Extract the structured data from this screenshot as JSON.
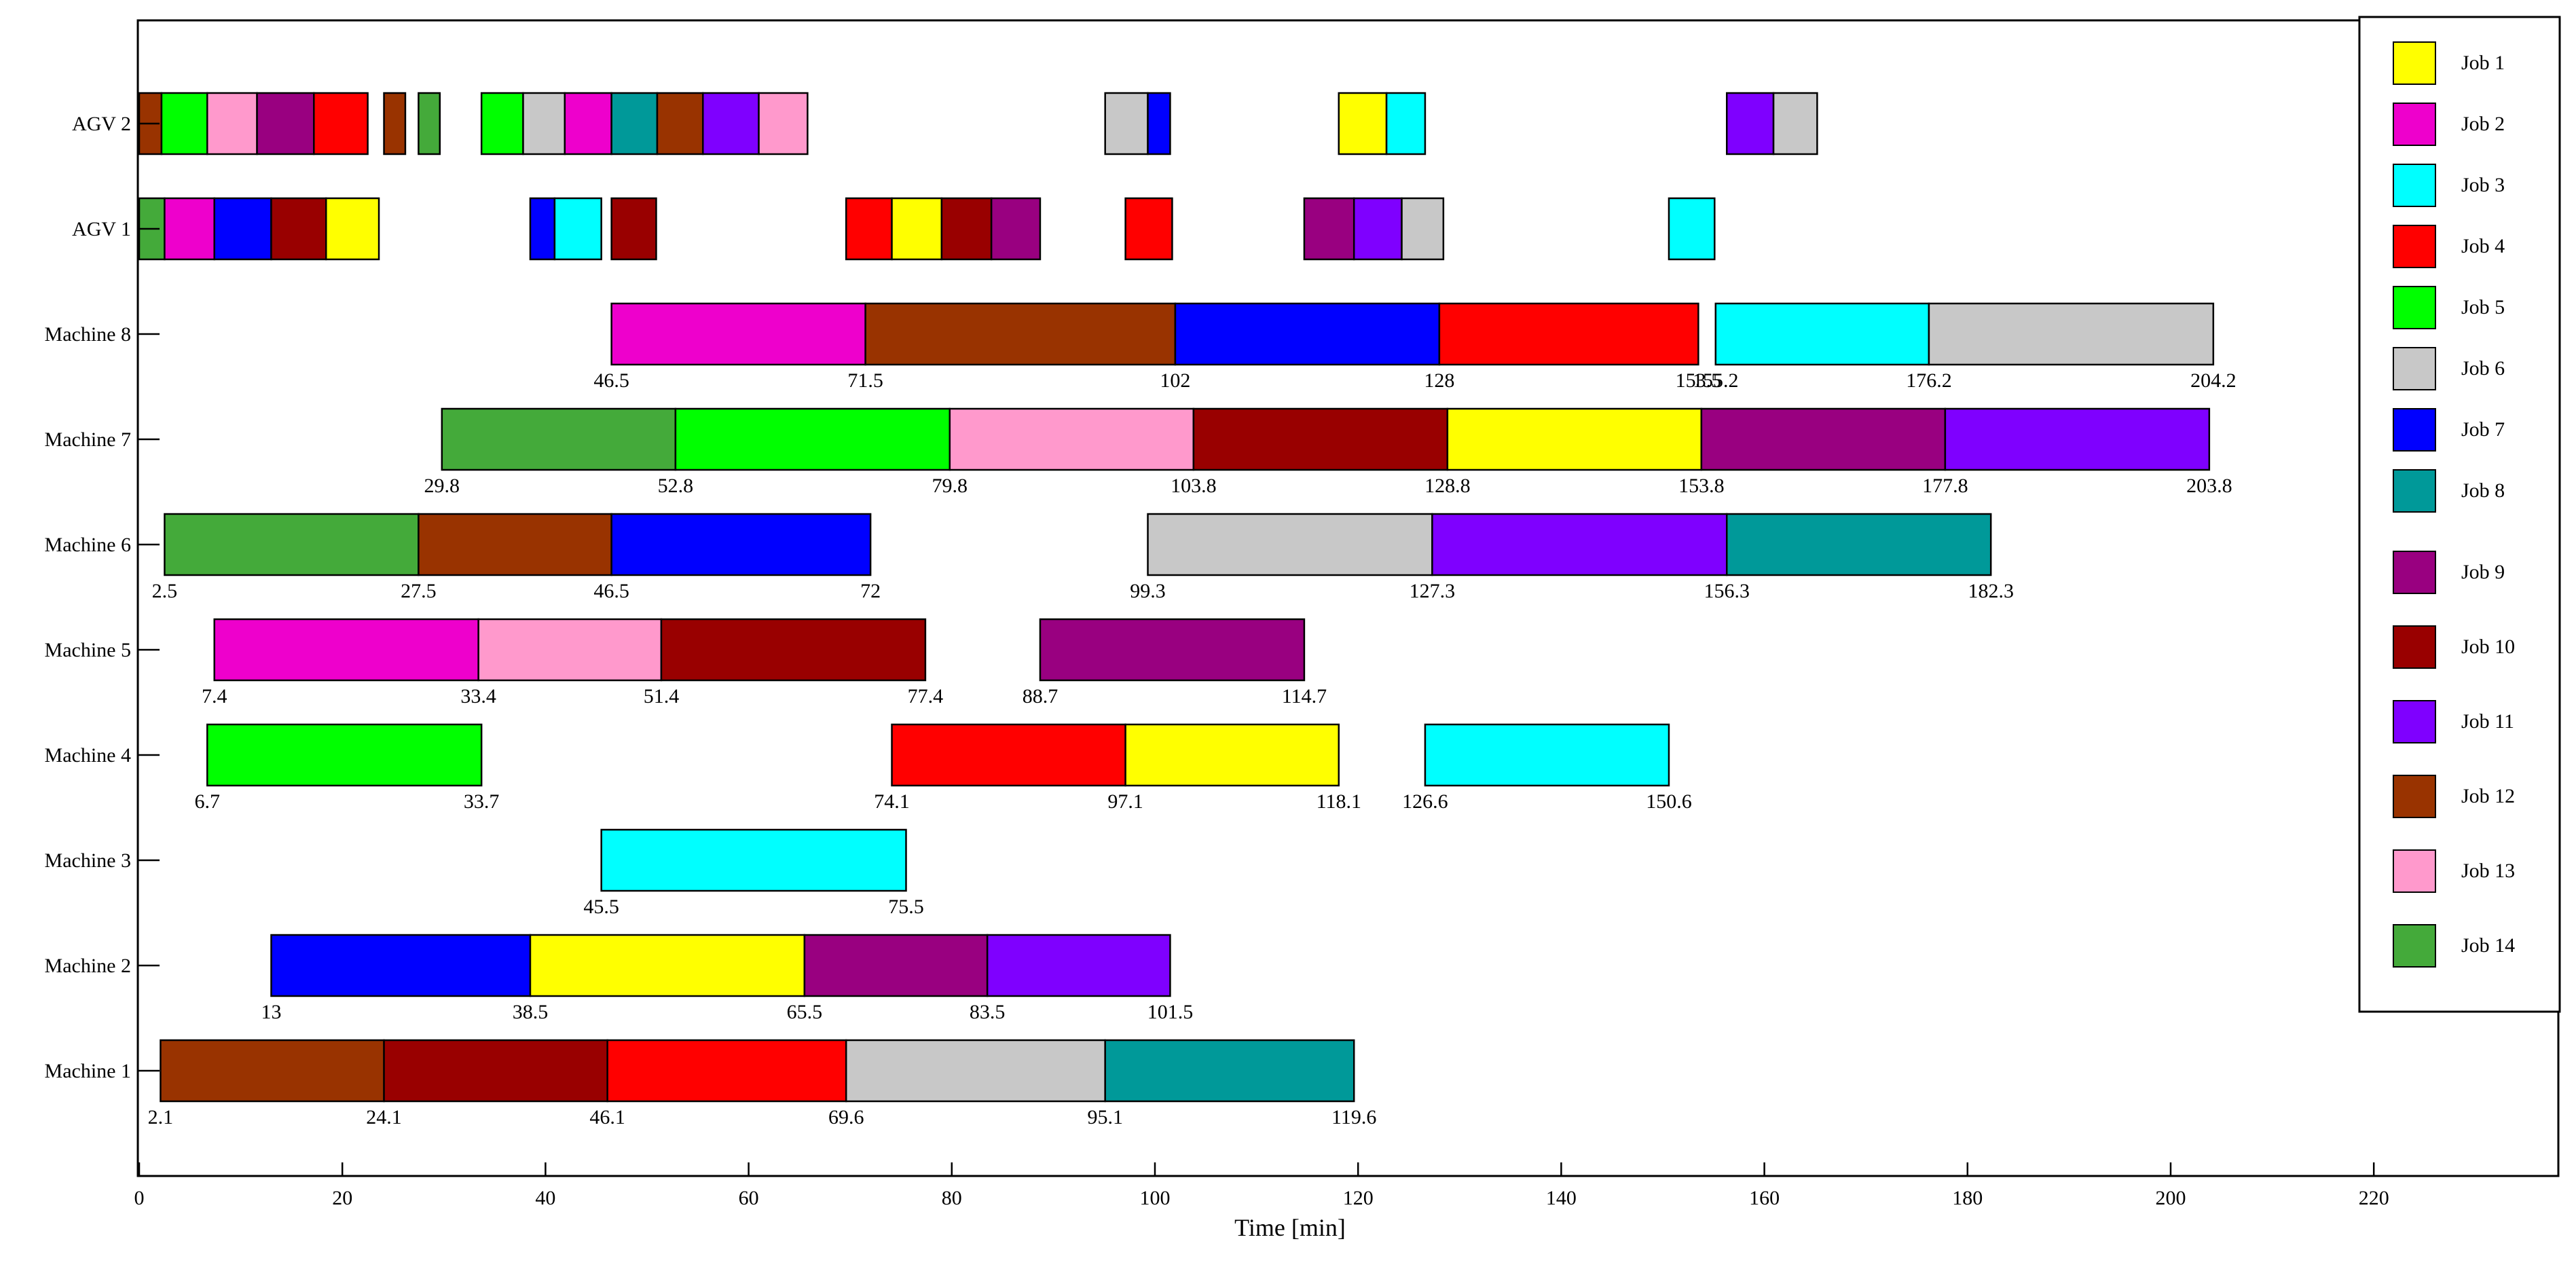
{
  "chart_data": {
    "type": "gantt",
    "xlabel": "Time [min]",
    "xlim": [
      0,
      238
    ],
    "xticks": [
      0,
      20,
      40,
      60,
      80,
      100,
      120,
      140,
      160,
      180,
      200,
      220
    ],
    "jobs": [
      {
        "name": "Job 1",
        "color": "#FFFF00"
      },
      {
        "name": "Job 2",
        "color": "#EE00CC"
      },
      {
        "name": "Job 3",
        "color": "#00FFFF"
      },
      {
        "name": "Job 4",
        "color": "#FF0000"
      },
      {
        "name": "Job 5",
        "color": "#00FF00"
      },
      {
        "name": "Job 6",
        "color": "#C8C8C8"
      },
      {
        "name": "Job 7",
        "color": "#0000FF"
      },
      {
        "name": "Job 8",
        "color": "#009999"
      },
      {
        "name": "Job 9",
        "color": "#990080"
      },
      {
        "name": "Job 10",
        "color": "#990000"
      },
      {
        "name": "Job 11",
        "color": "#7F00FF"
      },
      {
        "name": "Job 12",
        "color": "#993300"
      },
      {
        "name": "Job 13",
        "color": "#FF99CC"
      },
      {
        "name": "Job 14",
        "color": "#44AA3A"
      }
    ],
    "resources": [
      {
        "name": "AGV 2",
        "tasks": [
          {
            "job": 12,
            "start": 0,
            "end": 2.2
          },
          {
            "job": 5,
            "start": 2.2,
            "end": 6.7
          },
          {
            "job": 13,
            "start": 6.7,
            "end": 11.6
          },
          {
            "job": 9,
            "start": 11.6,
            "end": 17.2
          },
          {
            "job": 4,
            "start": 17.2,
            "end": 22.5
          },
          {
            "job": 12,
            "start": 24.1,
            "end": 26.2
          },
          {
            "job": 14,
            "start": 27.5,
            "end": 29.6
          },
          {
            "job": 5,
            "start": 33.7,
            "end": 37.8
          },
          {
            "job": 6,
            "start": 37.8,
            "end": 41.9
          },
          {
            "job": 2,
            "start": 41.9,
            "end": 46.5
          },
          {
            "job": 8,
            "start": 46.5,
            "end": 51.0
          },
          {
            "job": 12,
            "start": 51.0,
            "end": 55.5
          },
          {
            "job": 11,
            "start": 55.5,
            "end": 61.0
          },
          {
            "job": 13,
            "start": 61.0,
            "end": 65.8
          },
          {
            "job": 6,
            "start": 95.1,
            "end": 99.3
          },
          {
            "job": 7,
            "start": 99.3,
            "end": 101.5
          },
          {
            "job": 1,
            "start": 118.1,
            "end": 122.8
          },
          {
            "job": 3,
            "start": 122.8,
            "end": 126.6
          },
          {
            "job": 11,
            "start": 156.3,
            "end": 160.9
          },
          {
            "job": 6,
            "start": 160.9,
            "end": 165.2
          }
        ]
      },
      {
        "name": "AGV 1",
        "tasks": [
          {
            "job": 14,
            "start": 0,
            "end": 2.5
          },
          {
            "job": 2,
            "start": 2.5,
            "end": 7.4
          },
          {
            "job": 7,
            "start": 7.4,
            "end": 13.0
          },
          {
            "job": 10,
            "start": 13.0,
            "end": 18.4
          },
          {
            "job": 1,
            "start": 18.4,
            "end": 23.6
          },
          {
            "job": 7,
            "start": 38.5,
            "end": 40.9
          },
          {
            "job": 3,
            "start": 40.9,
            "end": 45.5
          },
          {
            "job": 10,
            "start": 46.5,
            "end": 50.9
          },
          {
            "job": 4,
            "start": 69.6,
            "end": 74.1
          },
          {
            "job": 1,
            "start": 74.1,
            "end": 79.0
          },
          {
            "job": 10,
            "start": 79.0,
            "end": 83.9
          },
          {
            "job": 9,
            "start": 83.9,
            "end": 88.7
          },
          {
            "job": 4,
            "start": 97.1,
            "end": 101.7
          },
          {
            "job": 9,
            "start": 114.7,
            "end": 119.6
          },
          {
            "job": 11,
            "start": 119.6,
            "end": 124.3
          },
          {
            "job": 6,
            "start": 124.3,
            "end": 128.4
          },
          {
            "job": 3,
            "start": 150.6,
            "end": 155.1
          }
        ]
      },
      {
        "name": "Machine 8",
        "tasks": [
          {
            "job": 2,
            "start": 46.5,
            "end": 71.5
          },
          {
            "job": 12,
            "start": 71.5,
            "end": 102
          },
          {
            "job": 7,
            "start": 102,
            "end": 128
          },
          {
            "job": 4,
            "start": 128,
            "end": 153.5
          },
          {
            "job": 3,
            "start": 155.2,
            "end": 176.2
          },
          {
            "job": 6,
            "start": 176.2,
            "end": 204.2
          }
        ],
        "labels": [
          "46.5",
          "71.5",
          "102",
          "128",
          "153.5",
          "155.2",
          "176.2",
          "204.2"
        ]
      },
      {
        "name": "Machine 7",
        "tasks": [
          {
            "job": 14,
            "start": 29.8,
            "end": 52.8
          },
          {
            "job": 5,
            "start": 52.8,
            "end": 79.8
          },
          {
            "job": 13,
            "start": 79.8,
            "end": 103.8
          },
          {
            "job": 10,
            "start": 103.8,
            "end": 128.8
          },
          {
            "job": 1,
            "start": 128.8,
            "end": 153.8
          },
          {
            "job": 9,
            "start": 153.8,
            "end": 177.8
          },
          {
            "job": 11,
            "start": 177.8,
            "end": 203.8
          }
        ],
        "labels": [
          "29.8",
          "52.8",
          "79.8",
          "103.8",
          "128.8",
          "153.8",
          "177.8",
          "203.8"
        ]
      },
      {
        "name": "Machine 6",
        "tasks": [
          {
            "job": 14,
            "start": 2.5,
            "end": 27.5
          },
          {
            "job": 12,
            "start": 27.5,
            "end": 46.5
          },
          {
            "job": 7,
            "start": 46.5,
            "end": 72
          },
          {
            "job": 6,
            "start": 99.3,
            "end": 127.3
          },
          {
            "job": 11,
            "start": 127.3,
            "end": 156.3
          },
          {
            "job": 8,
            "start": 156.3,
            "end": 182.3
          }
        ],
        "labels": [
          "2.5",
          "27.5",
          "46.5",
          "72",
          "99.3",
          "127.3",
          "156.3",
          "182.3"
        ]
      },
      {
        "name": "Machine 5",
        "tasks": [
          {
            "job": 2,
            "start": 7.4,
            "end": 33.4
          },
          {
            "job": 13,
            "start": 33.4,
            "end": 51.4
          },
          {
            "job": 10,
            "start": 51.4,
            "end": 77.4
          },
          {
            "job": 9,
            "start": 88.7,
            "end": 114.7
          }
        ],
        "labels": [
          "7.4",
          "33.4",
          "51.4",
          "77.4",
          "88.7",
          "114.7"
        ]
      },
      {
        "name": "Machine 4",
        "tasks": [
          {
            "job": 5,
            "start": 6.7,
            "end": 33.7
          },
          {
            "job": 4,
            "start": 74.1,
            "end": 97.1
          },
          {
            "job": 1,
            "start": 97.1,
            "end": 118.1
          },
          {
            "job": 3,
            "start": 126.6,
            "end": 150.6
          }
        ],
        "labels": [
          "6.7",
          "33.7",
          "74.1",
          "97.1",
          "118.1",
          "126.6",
          "150.6"
        ]
      },
      {
        "name": "Machine 3",
        "tasks": [
          {
            "job": 3,
            "start": 45.5,
            "end": 75.5
          }
        ],
        "labels": [
          "45.5",
          "75.5"
        ]
      },
      {
        "name": "Machine 2",
        "tasks": [
          {
            "job": 7,
            "start": 13,
            "end": 38.5
          },
          {
            "job": 1,
            "start": 38.5,
            "end": 65.5
          },
          {
            "job": 9,
            "start": 65.5,
            "end": 83.5
          },
          {
            "job": 11,
            "start": 83.5,
            "end": 101.5
          }
        ],
        "labels": [
          "13",
          "38.5",
          "65.5",
          "83.5",
          "101.5"
        ]
      },
      {
        "name": "Machine 1",
        "tasks": [
          {
            "job": 12,
            "start": 2.1,
            "end": 24.1
          },
          {
            "job": 10,
            "start": 24.1,
            "end": 46.1
          },
          {
            "job": 4,
            "start": 46.1,
            "end": 69.6
          },
          {
            "job": 6,
            "start": 69.6,
            "end": 95.1
          },
          {
            "job": 8,
            "start": 95.1,
            "end": 119.6
          }
        ],
        "labels": [
          "2.1",
          "24.1",
          "46.1",
          "69.6",
          "95.1",
          "119.6"
        ]
      }
    ]
  }
}
